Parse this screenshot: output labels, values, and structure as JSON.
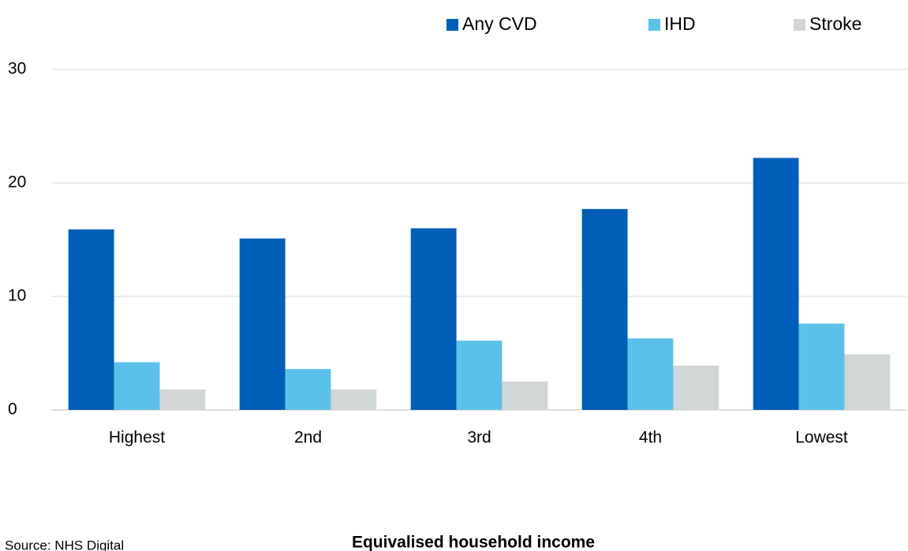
{
  "chart_data": {
    "type": "bar",
    "categories": [
      "Highest",
      "2nd",
      "3rd",
      "4th",
      "Lowest"
    ],
    "series": [
      {
        "name": "Any CVD",
        "color": "#005eb8",
        "values": [
          15.9,
          15.1,
          16.0,
          17.7,
          22.2
        ]
      },
      {
        "name": "IHD",
        "color": "#5bc1ea",
        "values": [
          4.2,
          3.6,
          6.1,
          6.3,
          7.6
        ]
      },
      {
        "name": "Stroke",
        "color": "#d1d6d6",
        "values": [
          1.8,
          1.8,
          2.5,
          3.9,
          4.9
        ]
      }
    ],
    "ylim": [
      0,
      30
    ],
    "yticks": [
      0,
      10,
      20,
      30
    ],
    "grid": true,
    "x_label": "Equivalised household income",
    "source": "Source: NHS  Digital",
    "legend": "top"
  }
}
